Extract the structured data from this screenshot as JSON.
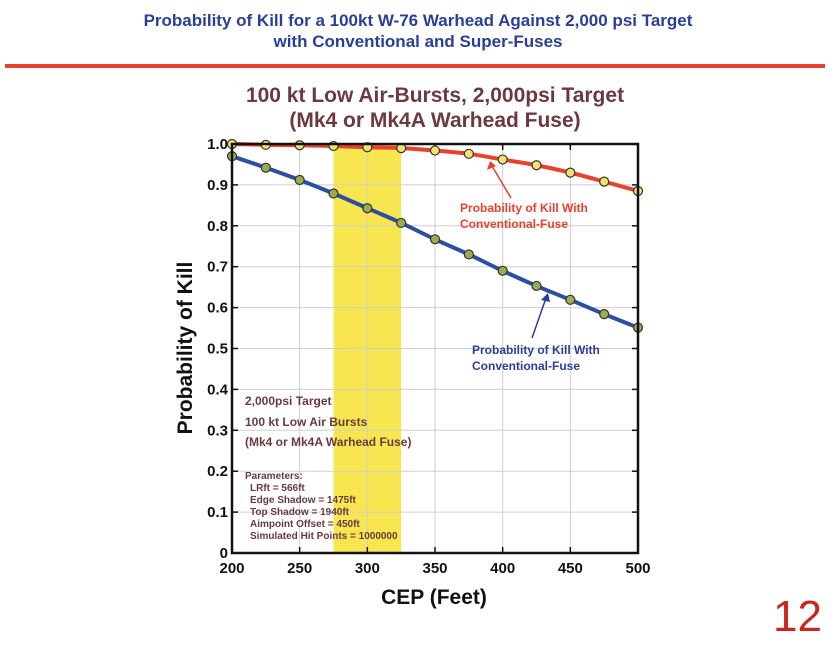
{
  "slide": {
    "title_line1": "Probability of Kill for a 100kt W-76 Warhead Against 2,000 psi Target",
    "title_line2": "with Conventional and Super-Fuses",
    "page_number": "12",
    "colors": {
      "title": "#2a3f97",
      "rule": "#e8412c",
      "page_number": "#c8281e"
    }
  },
  "chart_data": {
    "type": "line",
    "title_line1": "100 kt Low Air-Bursts,  2,000psi Target",
    "title_line2": "(Mk4 or Mk4A Warhead Fuse)",
    "xlabel": "CEP (Feet)",
    "ylabel": "Probability of Kill",
    "xlim": [
      200,
      500
    ],
    "ylim": [
      0,
      1.0
    ],
    "x_ticks": [
      200,
      250,
      300,
      350,
      400,
      450,
      500
    ],
    "y_ticks": [
      0,
      0.1,
      0.2,
      0.3,
      0.4,
      0.5,
      0.6,
      0.7,
      0.8,
      0.9,
      1.0
    ],
    "y_tick_labels": [
      "0",
      "0.1",
      "0.2",
      "0.3",
      "0.4",
      "0.5",
      "0.6",
      "0.7",
      "0.8",
      "0.9",
      "1.0"
    ],
    "grid": true,
    "highlight_band": {
      "x_range": [
        275,
        325
      ],
      "color": "#f7e650"
    },
    "series": [
      {
        "name": "red",
        "line_color": "#e8412c",
        "marker_color": "#f3e36a",
        "x": [
          200,
          225,
          250,
          275,
          300,
          325,
          350,
          375,
          400,
          425,
          450,
          475,
          500
        ],
        "values": [
          1.0,
          0.998,
          0.997,
          0.995,
          0.992,
          0.99,
          0.984,
          0.976,
          0.962,
          0.948,
          0.93,
          0.908,
          0.885
        ]
      },
      {
        "name": "blue",
        "line_color": "#2c4ea3",
        "marker_color": "#9aac4e",
        "x": [
          200,
          225,
          250,
          275,
          300,
          325,
          350,
          375,
          400,
          425,
          450,
          475,
          500
        ],
        "values": [
          0.97,
          0.942,
          0.912,
          0.879,
          0.843,
          0.807,
          0.767,
          0.73,
          0.69,
          0.653,
          0.619,
          0.584,
          0.551
        ]
      }
    ],
    "annotations": {
      "red_label_line1": "Probability of Kill With",
      "red_label_line2": "Conventional-Fuse",
      "red_label_color": "#e8412c",
      "blue_label_line1": "Probability of Kill With",
      "blue_label_line2": "Conventional-Fuse",
      "blue_label_color": "#2a3f97",
      "info_line1": "2,000psi Target",
      "info_line2": "100 kt Low Air Bursts",
      "info_line3": "(Mk4 or Mk4A Warhead Fuse)",
      "info_color": "#6b3a3f",
      "params_title": "Parameters:",
      "params": [
        "LRft = 566ft",
        "Edge Shadow = 1475ft",
        "Top Shadow = 1940ft",
        "Aimpoint Offset = 450ft",
        "Simulated Hit Points = 1000000"
      ]
    }
  }
}
